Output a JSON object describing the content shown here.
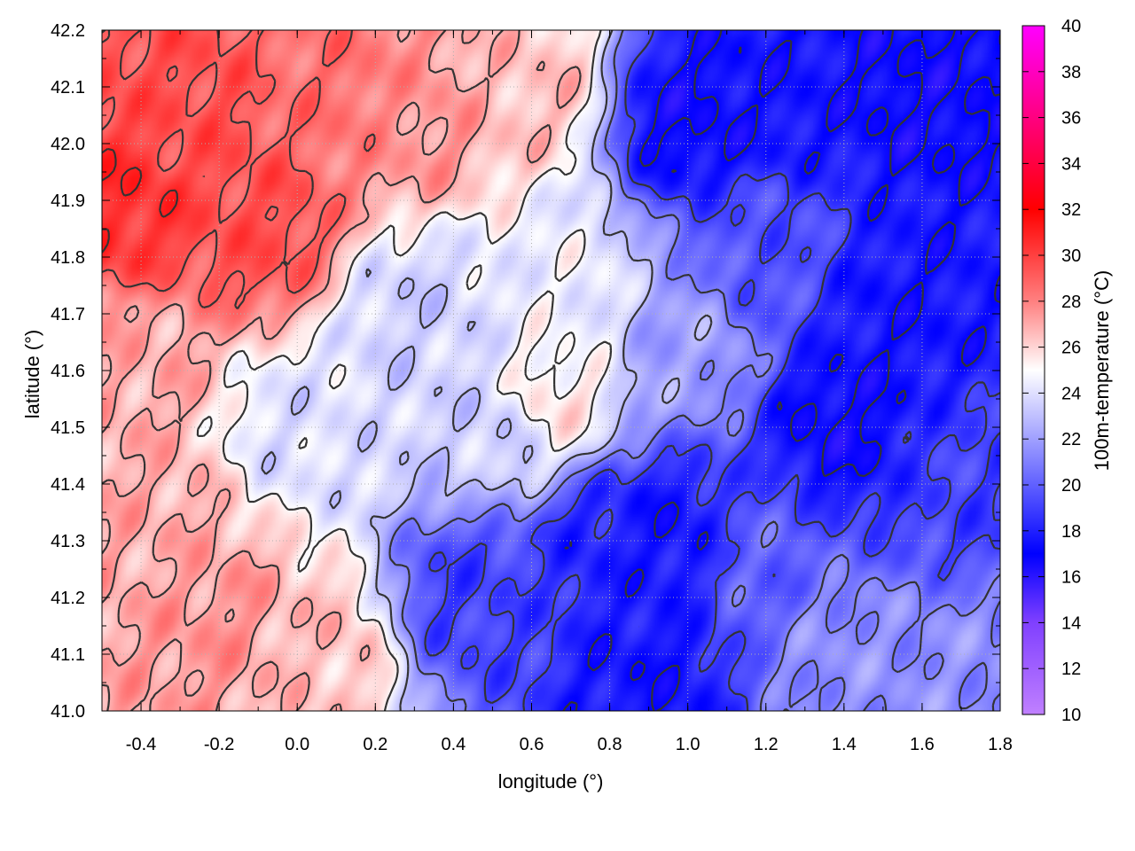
{
  "chart_data": {
    "type": "heatmap",
    "title": "",
    "xlabel": "longitude (°)",
    "ylabel": "latitude (°)",
    "colorbar_label": "100m-temperature (°C)",
    "xlim": [
      -0.5,
      1.8
    ],
    "ylim": [
      41.0,
      42.2
    ],
    "xticks": [
      "-0.4",
      "-0.2",
      "0.0",
      "0.2",
      "0.4",
      "0.6",
      "0.8",
      "1.0",
      "1.2",
      "1.4",
      "1.6",
      "1.8"
    ],
    "yticks": [
      "41.0",
      "41.1",
      "41.2",
      "41.3",
      "41.4",
      "41.5",
      "41.6",
      "41.7",
      "41.8",
      "41.9",
      "42.0",
      "42.1",
      "42.2"
    ],
    "colorbar_range": [
      10,
      40
    ],
    "colorbar_ticks": [
      "10",
      "12",
      "14",
      "16",
      "18",
      "20",
      "22",
      "24",
      "26",
      "28",
      "30",
      "32",
      "34",
      "36",
      "38",
      "40"
    ],
    "colormap": [
      {
        "value": 10,
        "color": "#c080ff"
      },
      {
        "value": 14,
        "color": "#8040ff"
      },
      {
        "value": 17,
        "color": "#0000ff"
      },
      {
        "value": 21,
        "color": "#8080ff"
      },
      {
        "value": 25,
        "color": "#ffffff"
      },
      {
        "value": 28,
        "color": "#ff8080"
      },
      {
        "value": 32,
        "color": "#ff0000"
      },
      {
        "value": 37,
        "color": "#ff00a0"
      },
      {
        "value": 40,
        "color": "#ff00ff"
      }
    ],
    "grid": true,
    "field_samples": [
      {
        "lon": -0.45,
        "lat": 41.9,
        "temp": 30.5
      },
      {
        "lon": -0.3,
        "lat": 42.05,
        "temp": 29.5
      },
      {
        "lon": -0.1,
        "lat": 41.85,
        "temp": 29.5
      },
      {
        "lon": 0.1,
        "lat": 42.1,
        "temp": 28.5
      },
      {
        "lon": 0.3,
        "lat": 42.05,
        "temp": 27.5
      },
      {
        "lon": 0.6,
        "lat": 42.1,
        "temp": 26.5
      },
      {
        "lon": -0.4,
        "lat": 41.6,
        "temp": 27
      },
      {
        "lon": -0.35,
        "lat": 41.3,
        "temp": 27
      },
      {
        "lon": -0.2,
        "lat": 41.15,
        "temp": 27.5
      },
      {
        "lon": 0.05,
        "lat": 41.1,
        "temp": 26.5
      },
      {
        "lon": 0.0,
        "lat": 41.5,
        "temp": 24
      },
      {
        "lon": 0.3,
        "lat": 41.7,
        "temp": 23.5
      },
      {
        "lon": 0.5,
        "lat": 41.5,
        "temp": 23.5
      },
      {
        "lon": 0.7,
        "lat": 41.75,
        "temp": 24.5
      },
      {
        "lon": 0.65,
        "lat": 41.55,
        "temp": 25.5
      },
      {
        "lon": 0.45,
        "lat": 41.2,
        "temp": 19
      },
      {
        "lon": 0.8,
        "lat": 41.3,
        "temp": 18
      },
      {
        "lon": 0.9,
        "lat": 41.05,
        "temp": 17.5
      },
      {
        "lon": 1.0,
        "lat": 41.65,
        "temp": 22
      },
      {
        "lon": 1.0,
        "lat": 42.05,
        "temp": 17
      },
      {
        "lon": 1.25,
        "lat": 42.1,
        "temp": 17.5
      },
      {
        "lon": 1.2,
        "lat": 41.8,
        "temp": 19.5
      },
      {
        "lon": 1.4,
        "lat": 41.5,
        "temp": 17
      },
      {
        "lon": 1.6,
        "lat": 42.1,
        "temp": 17
      },
      {
        "lon": 1.55,
        "lat": 41.7,
        "temp": 17.5
      },
      {
        "lon": 1.7,
        "lat": 41.4,
        "temp": 19
      },
      {
        "lon": 1.4,
        "lat": 41.1,
        "temp": 21.5
      },
      {
        "lon": 1.7,
        "lat": 41.05,
        "temp": 21.5
      },
      {
        "lon": 1.2,
        "lat": 41.25,
        "temp": 20
      },
      {
        "lon": 0.95,
        "lat": 41.3,
        "temp": 17.5
      }
    ]
  }
}
